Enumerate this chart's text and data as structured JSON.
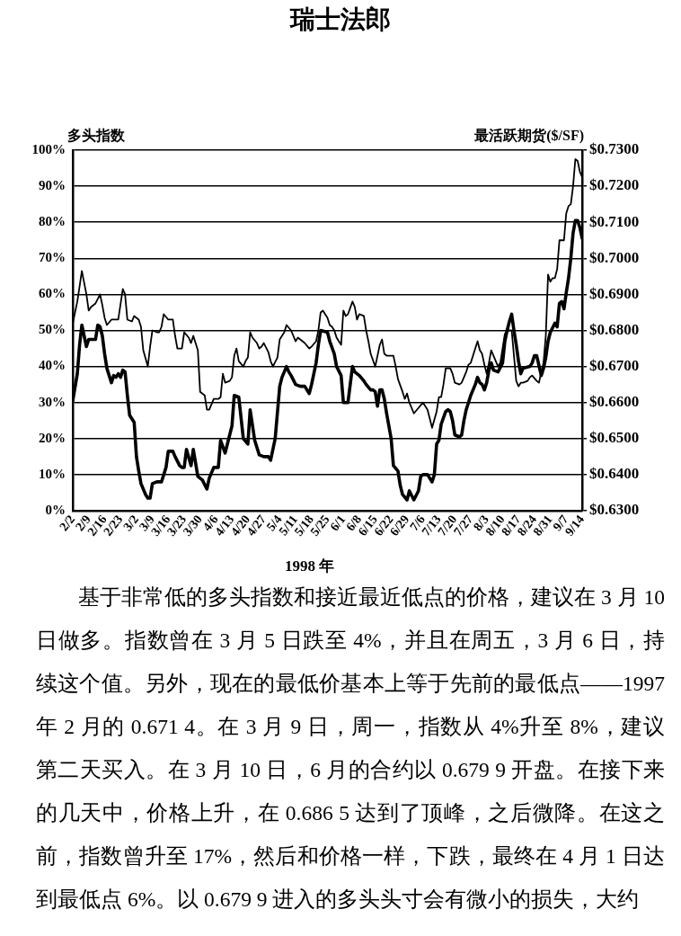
{
  "chart_data": {
    "type": "line",
    "title": "瑞士法郎",
    "xlabel": "1998 年",
    "ylabel": "多头指数",
    "y2label": "最活跃期货($/SF)",
    "xlim": [
      "1998-02-02",
      "1998-09-14"
    ],
    "xticks": [
      {
        "value": "1998-02-02",
        "label": "2/2"
      },
      {
        "value": "1998-02-09",
        "label": "2/9"
      },
      {
        "value": "1998-02-16",
        "label": "2/16"
      },
      {
        "value": "1998-02-23",
        "label": "2/23"
      },
      {
        "value": "1998-03-02",
        "label": "3/2"
      },
      {
        "value": "1998-03-09",
        "label": "3/9"
      },
      {
        "value": "1998-03-16",
        "label": "3/16"
      },
      {
        "value": "1998-03-23",
        "label": "3/23"
      },
      {
        "value": "1998-03-30",
        "label": "3/30"
      },
      {
        "value": "1998-04-06",
        "label": "4/6"
      },
      {
        "value": "1998-04-13",
        "label": "4/13"
      },
      {
        "value": "1998-04-20",
        "label": "4/20"
      },
      {
        "value": "1998-04-27",
        "label": "4/27"
      },
      {
        "value": "1998-05-04",
        "label": "5/4"
      },
      {
        "value": "1998-05-11",
        "label": "5/11"
      },
      {
        "value": "1998-05-18",
        "label": "5/18"
      },
      {
        "value": "1998-05-25",
        "label": "5/25"
      },
      {
        "value": "1998-06-01",
        "label": "6/1"
      },
      {
        "value": "1998-06-08",
        "label": "6/8"
      },
      {
        "value": "1998-06-15",
        "label": "6/15"
      },
      {
        "value": "1998-06-22",
        "label": "6/22"
      },
      {
        "value": "1998-06-29",
        "label": "6/29"
      },
      {
        "value": "1998-07-06",
        "label": "7/6"
      },
      {
        "value": "1998-07-13",
        "label": "7/13"
      },
      {
        "value": "1998-07-20",
        "label": "7/20"
      },
      {
        "value": "1998-07-27",
        "label": "7/27"
      },
      {
        "value": "1998-08-03",
        "label": "8/3"
      },
      {
        "value": "1998-08-10",
        "label": "8/10"
      },
      {
        "value": "1998-08-17",
        "label": "8/17"
      },
      {
        "value": "1998-08-24",
        "label": "8/24"
      },
      {
        "value": "1998-08-31",
        "label": "8/31"
      },
      {
        "value": "1998-09-07",
        "label": "9/7"
      },
      {
        "value": "1998-09-14",
        "label": "9/14"
      }
    ],
    "ylim": [
      0,
      100
    ],
    "yticks": [
      {
        "value": 0,
        "label": "0%"
      },
      {
        "value": 10,
        "label": "10%"
      },
      {
        "value": 20,
        "label": "20%"
      },
      {
        "value": 30,
        "label": "30%"
      },
      {
        "value": 40,
        "label": "40%"
      },
      {
        "value": 50,
        "label": "50%"
      },
      {
        "value": 60,
        "label": "60%"
      },
      {
        "value": 70,
        "label": "70%"
      },
      {
        "value": 80,
        "label": "80%"
      },
      {
        "value": 90,
        "label": "90%"
      },
      {
        "value": 100,
        "label": "100%"
      }
    ],
    "y2lim": [
      0.63,
      0.73
    ],
    "y2ticks": [
      {
        "value": 0.63,
        "label": "$0.6300"
      },
      {
        "value": 0.64,
        "label": "$0.6400"
      },
      {
        "value": 0.65,
        "label": "$0.6500"
      },
      {
        "value": 0.66,
        "label": "$0.6600"
      },
      {
        "value": 0.67,
        "label": "$0.6700"
      },
      {
        "value": 0.68,
        "label": "$0.6800"
      },
      {
        "value": 0.69,
        "label": "$0.6900"
      },
      {
        "value": 0.7,
        "label": "$0.7000"
      },
      {
        "value": 0.71,
        "label": "$0.7100"
      },
      {
        "value": 0.72,
        "label": "$0.7200"
      },
      {
        "value": 0.73,
        "label": "$0.7300"
      }
    ],
    "grid": "y",
    "legend": false,
    "series": [
      {
        "color": "#000000",
        "axis": "y",
        "x": [
          "1998-02-02",
          "1998-02-04",
          "1998-02-05",
          "1998-02-06",
          "1998-02-08",
          "1998-02-09",
          "1998-02-12",
          "1998-02-13",
          "1998-02-14",
          "1998-02-15",
          "1998-02-16",
          "1998-02-17",
          "1998-02-19",
          "1998-02-20",
          "1998-02-21",
          "1998-02-22",
          "1998-02-23",
          "1998-02-24",
          "1998-02-25",
          "1998-02-26",
          "1998-02-27",
          "1998-03-01",
          "1998-03-02",
          "1998-03-03",
          "1998-03-04",
          "1998-03-06",
          "1998-03-07",
          "1998-03-08",
          "1998-03-09",
          "1998-03-11",
          "1998-03-13",
          "1998-03-15",
          "1998-03-16",
          "1998-03-18",
          "1998-03-19",
          "1998-03-21",
          "1998-03-22",
          "1998-03-23",
          "1998-03-24",
          "1998-03-26",
          "1998-03-27",
          "1998-03-29",
          "1998-03-31",
          "1998-04-02",
          "1998-04-03",
          "1998-04-05",
          "1998-04-07",
          "1998-04-08",
          "1998-04-10",
          "1998-04-11",
          "1998-04-13",
          "1998-04-14",
          "1998-04-16",
          "1998-04-18",
          "1998-04-20",
          "1998-04-21",
          "1998-04-23",
          "1998-04-25",
          "1998-04-27",
          "1998-04-29",
          "1998-04-30",
          "1998-05-02",
          "1998-05-04",
          "1998-05-05",
          "1998-05-07",
          "1998-05-08",
          "1998-05-09",
          "1998-05-11",
          "1998-05-13",
          "1998-05-15",
          "1998-05-17",
          "1998-05-18",
          "1998-05-20",
          "1998-05-21",
          "1998-05-22",
          "1998-05-25",
          "1998-05-26",
          "1998-05-28",
          "1998-05-29",
          "1998-05-31",
          "1998-06-01",
          "1998-06-03",
          "1998-06-04",
          "1998-06-05",
          "1998-06-06",
          "1998-06-08",
          "1998-06-10",
          "1998-06-11",
          "1998-06-13",
          "1998-06-14",
          "1998-06-15",
          "1998-06-16",
          "1998-06-17",
          "1998-06-18",
          "1998-06-19",
          "1998-06-20",
          "1998-06-22",
          "1998-06-23",
          "1998-06-25",
          "1998-06-26",
          "1998-06-27",
          "1998-06-29",
          "1998-06-30",
          "1998-07-02",
          "1998-07-04",
          "1998-07-05",
          "1998-07-06",
          "1998-07-08",
          "1998-07-10",
          "1998-07-11",
          "1998-07-12",
          "1998-07-13",
          "1998-07-14",
          "1998-07-16",
          "1998-07-17",
          "1998-07-18",
          "1998-07-19",
          "1998-07-20",
          "1998-07-22",
          "1998-07-23",
          "1998-07-24",
          "1998-07-25",
          "1998-07-26",
          "1998-07-27",
          "1998-07-29",
          "1998-07-30",
          "1998-07-31",
          "1998-08-01",
          "1998-08-02",
          "1998-08-03",
          "1998-08-04",
          "1998-08-05",
          "1998-08-06",
          "1998-08-08",
          "1998-08-10",
          "1998-08-11",
          "1998-08-12",
          "1998-08-13",
          "1998-08-14",
          "1998-08-15",
          "1998-08-16",
          "1998-08-17",
          "1998-08-18",
          "1998-08-19",
          "1998-08-22",
          "1998-08-23",
          "1998-08-24",
          "1998-08-25",
          "1998-08-27",
          "1998-08-28",
          "1998-08-29",
          "1998-08-30",
          "1998-08-31",
          "1998-09-02",
          "1998-09-03",
          "1998-09-04",
          "1998-09-05",
          "1998-09-06",
          "1998-09-07",
          "1998-09-08",
          "1998-09-09",
          "1998-09-10",
          "1998-09-11",
          "1998-09-12",
          "1998-09-13",
          "1998-09-14"
        ],
        "values": [
          30.5,
          38,
          46,
          51.5,
          45.5,
          47.5,
          47.5,
          51.5,
          51,
          48.5,
          43.5,
          39.5,
          35.5,
          37.5,
          37,
          38,
          37,
          39,
          38.5,
          32,
          26.5,
          24.5,
          15,
          11,
          7.5,
          4.5,
          3.5,
          3.5,
          7.5,
          8,
          8,
          12,
          16.5,
          16.5,
          15,
          12.5,
          12,
          12,
          17,
          12.5,
          17,
          9.5,
          8.5,
          6,
          9,
          12,
          12,
          19.5,
          16,
          18.5,
          23.5,
          32,
          31.5,
          20,
          18.5,
          28,
          19.5,
          15.5,
          15,
          15,
          14,
          20,
          34.5,
          37,
          40,
          38.5,
          37.5,
          35,
          34.5,
          34.5,
          32.5,
          35,
          41,
          46,
          50,
          49.5,
          47,
          43.5,
          40,
          37.5,
          30,
          30,
          35,
          40,
          38.5,
          37.5,
          36,
          35,
          33.5,
          33.5,
          33,
          29,
          33.5,
          33.5,
          31,
          27,
          20,
          12.5,
          11,
          7,
          4.5,
          3,
          5.5,
          3,
          5.5,
          9.5,
          10,
          10,
          8,
          10,
          18.5,
          19.5,
          24,
          27.5,
          28,
          27.5,
          25,
          21,
          20.5,
          21,
          25,
          28,
          30,
          32,
          35,
          37,
          35.5,
          35,
          33.5,
          35.5,
          39,
          41,
          39,
          38.5,
          41,
          47,
          50,
          52.5,
          54.5,
          50,
          46,
          41.5,
          38,
          39.5,
          40,
          41,
          43,
          43,
          37.5,
          39.5,
          42.5,
          47,
          49.5,
          52,
          51,
          57.5,
          58,
          56,
          60.5,
          64.5,
          70,
          77,
          80.5,
          80.5,
          78.5,
          75.5
        ]
      },
      {
        "color": "#000000",
        "axis": "y2",
        "x": [
          "1998-02-02",
          "1998-02-04",
          "1998-02-06",
          "1998-02-08",
          "1998-02-09",
          "1998-02-10",
          "1998-02-12",
          "1998-02-14",
          "1998-02-15",
          "1998-02-16",
          "1998-02-17",
          "1998-02-19",
          "1998-02-22",
          "1998-02-24",
          "1998-02-25",
          "1998-02-26",
          "1998-02-28",
          "1998-03-01",
          "1998-03-03",
          "1998-03-04",
          "1998-03-05",
          "1998-03-07",
          "1998-03-08",
          "1998-03-09",
          "1998-03-11",
          "1998-03-12",
          "1998-03-13",
          "1998-03-14",
          "1998-03-16",
          "1998-03-18",
          "1998-03-19",
          "1998-03-20",
          "1998-03-22",
          "1998-03-23",
          "1998-03-25",
          "1998-03-26",
          "1998-03-27",
          "1998-03-29",
          "1998-03-30",
          "1998-04-01",
          "1998-04-02",
          "1998-04-03",
          "1998-04-05",
          "1998-04-07",
          "1998-04-08",
          "1998-04-09",
          "1998-04-10",
          "1998-04-12",
          "1998-04-13",
          "1998-04-14",
          "1998-04-15",
          "1998-04-16",
          "1998-04-18",
          "1998-04-19",
          "1998-04-20",
          "1998-04-21",
          "1998-04-22",
          "1998-04-24",
          "1998-04-25",
          "1998-04-26",
          "1998-04-27",
          "1998-04-29",
          "1998-04-30",
          "1998-05-01",
          "1998-05-03",
          "1998-05-04",
          "1998-05-06",
          "1998-05-07",
          "1998-05-09",
          "1998-05-10",
          "1998-05-11",
          "1998-05-12",
          "1998-05-14",
          "1998-05-15",
          "1998-05-17",
          "1998-05-18",
          "1998-05-20",
          "1998-05-21",
          "1998-05-22",
          "1998-05-23",
          "1998-05-25",
          "1998-05-26",
          "1998-05-27",
          "1998-05-28",
          "1998-05-29",
          "1998-05-31",
          "1998-06-01",
          "1998-06-02",
          "1998-06-03",
          "1998-06-05",
          "1998-06-06",
          "1998-06-07",
          "1998-06-08",
          "1998-06-10",
          "1998-06-11",
          "1998-06-12",
          "1998-06-13",
          "1998-06-15",
          "1998-06-16",
          "1998-06-17",
          "1998-06-18",
          "1998-06-19",
          "1998-06-20",
          "1998-06-23",
          "1998-06-24",
          "1998-06-25",
          "1998-06-27",
          "1998-06-28",
          "1998-06-29",
          "1998-06-30",
          "1998-07-02",
          "1998-07-04",
          "1998-07-06",
          "1998-07-08",
          "1998-07-09",
          "1998-07-10",
          "1998-07-12",
          "1998-07-13",
          "1998-07-14",
          "1998-07-15",
          "1998-07-16",
          "1998-07-18",
          "1998-07-19",
          "1998-07-20",
          "1998-07-22",
          "1998-07-23",
          "1998-07-25",
          "1998-07-26",
          "1998-07-27",
          "1998-07-29",
          "1998-07-30",
          "1998-07-31",
          "1998-08-01",
          "1998-08-02",
          "1998-08-03",
          "1998-08-04",
          "1998-08-05",
          "1998-08-06",
          "1998-08-08",
          "1998-08-09",
          "1998-08-11",
          "1998-08-12",
          "1998-08-14",
          "1998-08-15",
          "1998-08-16",
          "1998-08-17",
          "1998-08-18",
          "1998-08-19",
          "1998-08-21",
          "1998-08-22",
          "1998-08-23",
          "1998-08-25",
          "1998-08-26",
          "1998-08-27",
          "1998-08-28",
          "1998-08-29",
          "1998-08-30",
          "1998-08-31",
          "1998-09-01",
          "1998-09-02",
          "1998-09-03",
          "1998-09-04",
          "1998-09-06",
          "1998-09-07",
          "1998-09-08",
          "1998-09-09",
          "1998-09-10",
          "1998-09-11",
          "1998-09-12",
          "1998-09-13",
          "1998-09-14"
        ],
        "values": [
          0.682,
          0.688,
          0.6965,
          0.69,
          0.6855,
          0.6865,
          0.6875,
          0.69,
          0.687,
          0.6835,
          0.6815,
          0.683,
          0.683,
          0.6915,
          0.69,
          0.683,
          0.6825,
          0.684,
          0.683,
          0.681,
          0.6745,
          0.67,
          0.6755,
          0.68,
          0.6795,
          0.6795,
          0.681,
          0.6845,
          0.683,
          0.683,
          0.6785,
          0.675,
          0.675,
          0.6795,
          0.678,
          0.6765,
          0.6785,
          0.6745,
          0.663,
          0.662,
          0.658,
          0.658,
          0.661,
          0.661,
          0.6615,
          0.668,
          0.6655,
          0.666,
          0.667,
          0.673,
          0.675,
          0.6715,
          0.67,
          0.6715,
          0.6725,
          0.6795,
          0.678,
          0.6765,
          0.675,
          0.6755,
          0.6765,
          0.674,
          0.6715,
          0.67,
          0.6725,
          0.6775,
          0.6795,
          0.6815,
          0.68,
          0.6785,
          0.677,
          0.678,
          0.677,
          0.6765,
          0.675,
          0.6755,
          0.677,
          0.68,
          0.685,
          0.6855,
          0.6835,
          0.6815,
          0.681,
          0.68,
          0.678,
          0.676,
          0.6855,
          0.684,
          0.6845,
          0.688,
          0.6865,
          0.683,
          0.6845,
          0.684,
          0.68,
          0.677,
          0.6735,
          0.67,
          0.673,
          0.676,
          0.6775,
          0.6735,
          0.673,
          0.673,
          0.67,
          0.6665,
          0.663,
          0.661,
          0.6625,
          0.66,
          0.657,
          0.6585,
          0.66,
          0.658,
          0.6555,
          0.653,
          0.6575,
          0.6615,
          0.6615,
          0.665,
          0.6695,
          0.6695,
          0.668,
          0.6655,
          0.665,
          0.6655,
          0.6685,
          0.6705,
          0.671,
          0.675,
          0.677,
          0.6745,
          0.6735,
          0.6705,
          0.668,
          0.671,
          0.6745,
          0.673,
          0.67,
          0.671,
          0.679,
          0.68,
          0.68,
          0.673,
          0.666,
          0.6645,
          0.6655,
          0.6655,
          0.666,
          0.667,
          0.6675,
          0.666,
          0.6655,
          0.6685,
          0.671,
          0.6785,
          0.6955,
          0.6935,
          0.6945,
          0.6945,
          0.697,
          0.705,
          0.705,
          0.7125,
          0.7145,
          0.715,
          0.72,
          0.7275,
          0.727,
          0.724,
          0.7225
        ]
      }
    ],
    "annotations": [
      "基于非常低的多头指数和接近最近低点的价格，建议在 3 月 10 日做多。指数曾在 3 月 5 日跌至 4%，并且在周五，3 月 6 日，持续这个值。另外，现在的最低价基本上等于先前的最低点——1997 年 2 月的 0.671 4。在 3 月 9 日，周一，指数从 4%升至 8%，建议第二天买入。在 3 月 10 日，6 月的合约以 0.679 9 开盘。在接下来的几天中，价格上升，在 0.686 5 达到了顶峰，之后微降。在这之前，指数曾升至 17%，然后和价格一样，下跌，最终在 4 月 1 日达到最低点 6%。以 0.679 9 进入的多头头寸会有微小的损失，大约"
    ]
  }
}
